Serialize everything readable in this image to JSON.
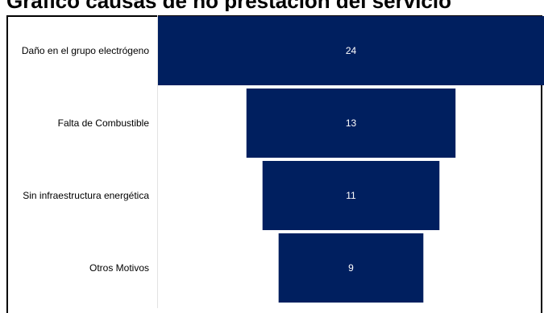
{
  "title": "Gráfico causas de no prestación del servicio",
  "chart_data": {
    "type": "bar",
    "subtype": "funnel",
    "title": "Gráfico causas de no prestación del servicio",
    "categories": [
      "Daño en el grupo electrógeno",
      "Falta de Combustible",
      "Sin infraestructura energética",
      "Otros Motivos"
    ],
    "values": [
      24,
      13,
      11,
      9
    ],
    "bar_color": "#001f5f",
    "label_color": "#ffffff",
    "grid": false,
    "legend": "none"
  }
}
